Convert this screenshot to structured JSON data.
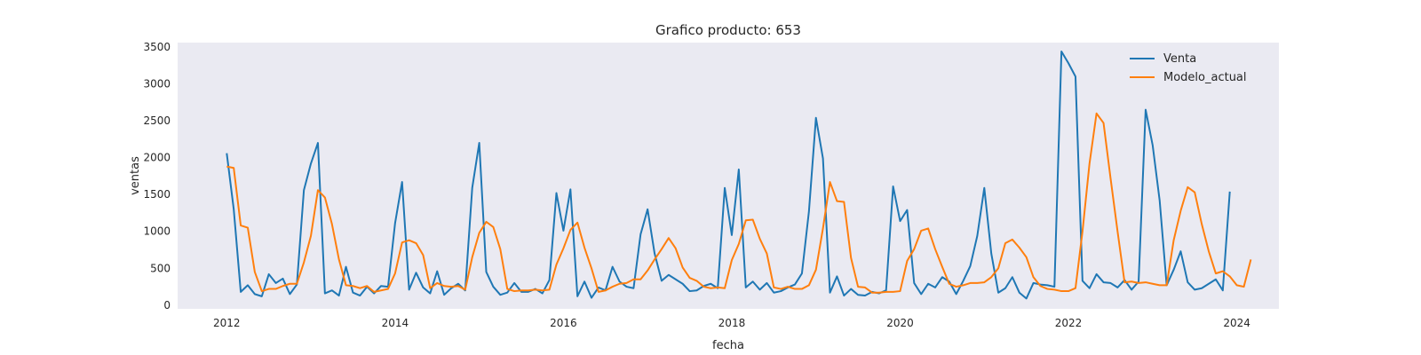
{
  "chart_data": {
    "type": "line",
    "title": "Grafico producto: 653",
    "xlabel": "fecha",
    "ylabel": "ventas",
    "x_start": "2012-01",
    "x_frequency": "monthly",
    "xlim": [
      "2011-06",
      "2024-07"
    ],
    "ylim": [
      -50,
      3560
    ],
    "x_ticks": [
      "2012",
      "2014",
      "2016",
      "2018",
      "2020",
      "2022",
      "2024"
    ],
    "y_ticks": [
      "0",
      "500",
      "1000",
      "1500",
      "2000",
      "2500",
      "3000",
      "3500"
    ],
    "grid": false,
    "legend_position": "top-right",
    "background_color": "#eaeaf2",
    "series": [
      {
        "name": "Venta",
        "color": "#1f77b4",
        "values": [
          2060,
          1300,
          180,
          270,
          150,
          120,
          420,
          300,
          360,
          150,
          280,
          1560,
          1920,
          2200,
          160,
          200,
          130,
          520,
          170,
          130,
          250,
          160,
          260,
          250,
          1110,
          1670,
          210,
          440,
          240,
          160,
          460,
          140,
          230,
          290,
          200,
          1590,
          2200,
          450,
          250,
          140,
          170,
          300,
          180,
          180,
          220,
          160,
          340,
          1520,
          1010,
          1570,
          120,
          320,
          100,
          240,
          200,
          520,
          320,
          250,
          230,
          960,
          1300,
          700,
          330,
          410,
          350,
          290,
          190,
          200,
          260,
          290,
          230,
          1590,
          950,
          1840,
          240,
          320,
          210,
          300,
          170,
          190,
          240,
          280,
          430,
          1270,
          2540,
          1990,
          170,
          390,
          130,
          220,
          140,
          130,
          180,
          160,
          200,
          1610,
          1140,
          1290,
          300,
          150,
          290,
          240,
          380,
          320,
          150,
          330,
          530,
          940,
          1590,
          700,
          170,
          230,
          380,
          170,
          90,
          300,
          280,
          270,
          250,
          3440,
          3280,
          3100,
          330,
          230,
          420,
          310,
          300,
          240,
          340,
          210,
          320,
          2650,
          2170,
          1420,
          270,
          480,
          730,
          310,
          210,
          230,
          290,
          350,
          200,
          1540
        ]
      },
      {
        "name": "Modelo_actual",
        "color": "#ff7f0e",
        "values": [
          1880,
          1860,
          1080,
          1050,
          450,
          190,
          220,
          220,
          260,
          290,
          290,
          580,
          940,
          1560,
          1460,
          1100,
          620,
          270,
          260,
          230,
          260,
          180,
          200,
          220,
          430,
          850,
          880,
          840,
          680,
          230,
          300,
          260,
          250,
          260,
          210,
          650,
          980,
          1130,
          1060,
          760,
          220,
          190,
          200,
          200,
          210,
          200,
          210,
          550,
          770,
          1020,
          1120,
          780,
          500,
          180,
          200,
          250,
          290,
          300,
          350,
          350,
          470,
          620,
          760,
          910,
          770,
          510,
          370,
          330,
          250,
          230,
          240,
          230,
          610,
          830,
          1150,
          1160,
          900,
          700,
          240,
          220,
          250,
          220,
          220,
          270,
          480,
          1040,
          1670,
          1410,
          1400,
          640,
          250,
          240,
          170,
          170,
          180,
          180,
          190,
          600,
          760,
          1010,
          1040,
          760,
          520,
          290,
          250,
          270,
          300,
          300,
          310,
          380,
          500,
          840,
          890,
          780,
          650,
          380,
          260,
          220,
          210,
          190,
          190,
          230,
          1000,
          1920,
          2600,
          2470,
          1720,
          1000,
          310,
          320,
          300,
          310,
          290,
          270,
          270,
          880,
          1280,
          1600,
          1530,
          1100,
          730,
          430,
          460,
          390,
          270,
          250,
          620
        ]
      }
    ]
  }
}
